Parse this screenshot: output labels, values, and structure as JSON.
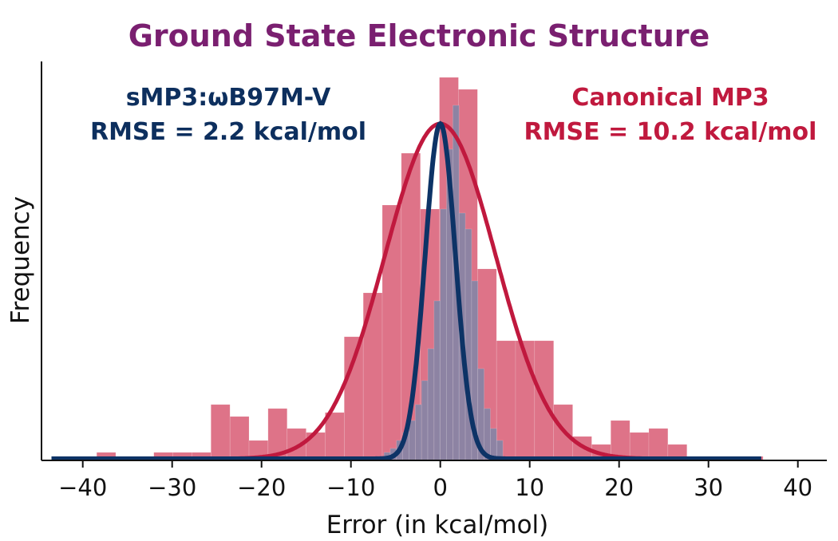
{
  "chart_data": {
    "type": "bar",
    "title": "Ground State Electronic Structure",
    "xlabel": "Error (in kcal/mol)",
    "ylabel": "Frequency",
    "xlim": [
      -44,
      44
    ],
    "xticks": [
      -40,
      -30,
      -20,
      -10,
      0,
      10,
      20,
      30,
      40
    ],
    "xtick_labels": [
      "−40",
      "−30",
      "−20",
      "−10",
      "0",
      "10",
      "20",
      "30",
      "40"
    ],
    "yticks_shown": false,
    "grid": false,
    "annotations": [
      {
        "lines": [
          "sMP3:ωB97M-V",
          "RMSE = 2.2 kcal/mol"
        ],
        "color": "#0d2f5e",
        "placement": "top-left"
      },
      {
        "lines": [
          "Canonical MP3",
          "RMSE = 10.2 kcal/mol"
        ],
        "color": "#c0193e",
        "placement": "top-right"
      }
    ],
    "title_color": "#7a1f70",
    "series": [
      {
        "kind": "histogram",
        "color": "#dc6b82",
        "bin_start": -42.7,
        "bin_width": 2.13,
        "counts": [
          1,
          0,
          2,
          0,
          0,
          2,
          2,
          2,
          14,
          11,
          5,
          13,
          8,
          7,
          12,
          31,
          42,
          64,
          77,
          63,
          96,
          93,
          48,
          30,
          30,
          30,
          14,
          6,
          4,
          10,
          7,
          8,
          4,
          1,
          1,
          0,
          1
        ]
      },
      {
        "kind": "histogram",
        "color": "#7f86a8",
        "bin_start": -7,
        "bin_width": 0.7,
        "counts": [
          1,
          2,
          3,
          5,
          7,
          10,
          14,
          20,
          28,
          40,
          63,
          78,
          89,
          62,
          58,
          45,
          23,
          13,
          8,
          5
        ]
      },
      {
        "kind": "normal-fit",
        "color": "#c0193e",
        "mean": 0,
        "sigma": 6.2,
        "peak": 84
      },
      {
        "kind": "normal-fit",
        "color": "#0d3366",
        "mean": 0,
        "sigma": 1.7,
        "peak": 84
      }
    ]
  }
}
